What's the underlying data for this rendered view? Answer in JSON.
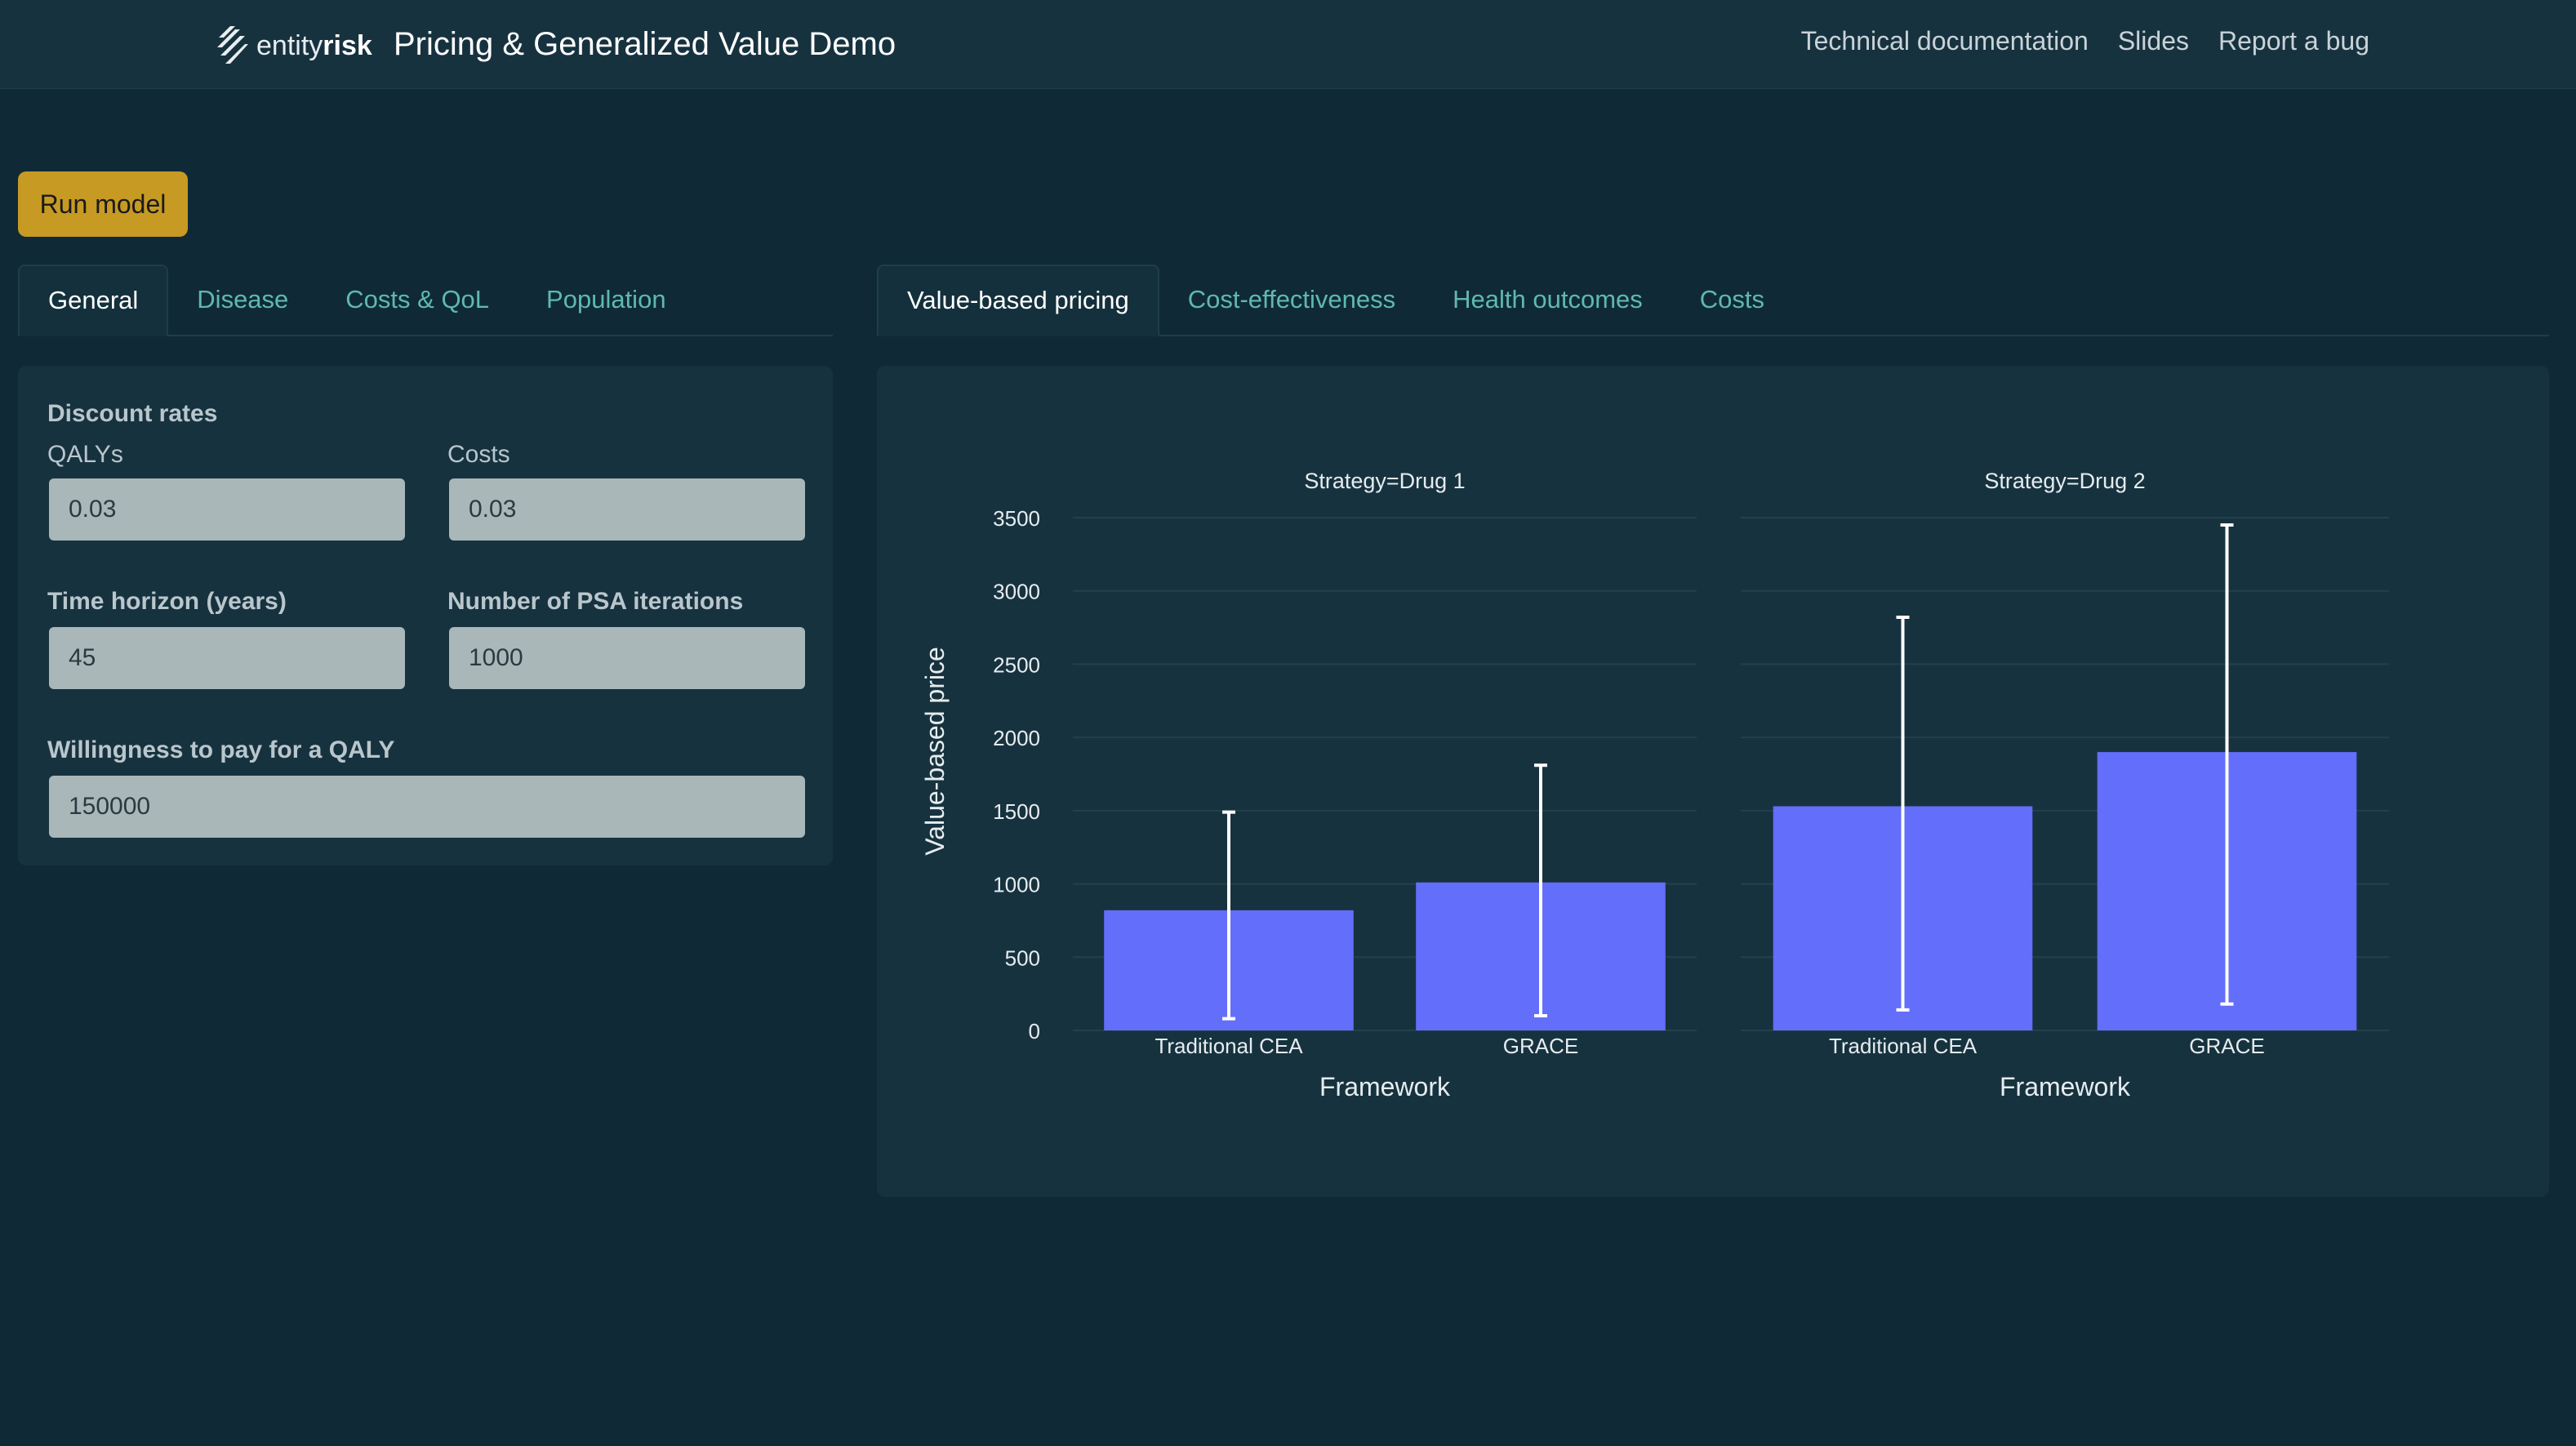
{
  "header": {
    "brand_light": "entity",
    "brand_bold": "risk",
    "title": "Pricing & Generalized Value Demo",
    "links": [
      "Technical documentation",
      "Slides",
      "Report a bug"
    ]
  },
  "run_button": "Run model",
  "input_tabs": [
    {
      "label": "General",
      "active": true
    },
    {
      "label": "Disease",
      "active": false
    },
    {
      "label": "Costs & QoL",
      "active": false
    },
    {
      "label": "Population",
      "active": false
    }
  ],
  "output_tabs": [
    {
      "label": "Value-based pricing",
      "active": true
    },
    {
      "label": "Cost-effectiveness",
      "active": false
    },
    {
      "label": "Health outcomes",
      "active": false
    },
    {
      "label": "Costs",
      "active": false
    }
  ],
  "form": {
    "discount_heading": "Discount rates",
    "qalys_label": "QALYs",
    "qalys_value": "0.03",
    "costs_label": "Costs",
    "costs_value": "0.03",
    "horizon_label": "Time horizon (years)",
    "horizon_value": "45",
    "psa_label": "Number of PSA iterations",
    "psa_value": "1000",
    "wtp_label": "Willingness to pay for a QALY",
    "wtp_value": "150000"
  },
  "colors": {
    "bar": "#636efa",
    "accent": "#c79a23",
    "tab_link": "#5fb8b4"
  },
  "chart_data": {
    "type": "bar",
    "ylabel": "Value-based price",
    "ylim": [
      0,
      3500
    ],
    "yticks": [
      0,
      500,
      1000,
      1500,
      2000,
      2500,
      3000,
      3500
    ],
    "grid": true,
    "panels": [
      {
        "title": "Strategy=Drug 1",
        "xlabel": "Framework",
        "categories": [
          "Traditional CEA",
          "GRACE"
        ],
        "values": [
          820,
          1010
        ],
        "error_low": [
          80,
          100
        ],
        "error_high": [
          1490,
          1810
        ]
      },
      {
        "title": "Strategy=Drug 2",
        "xlabel": "Framework",
        "categories": [
          "Traditional CEA",
          "GRACE"
        ],
        "values": [
          1530,
          1900
        ],
        "error_low": [
          140,
          180
        ],
        "error_high": [
          2820,
          3450
        ]
      }
    ]
  }
}
